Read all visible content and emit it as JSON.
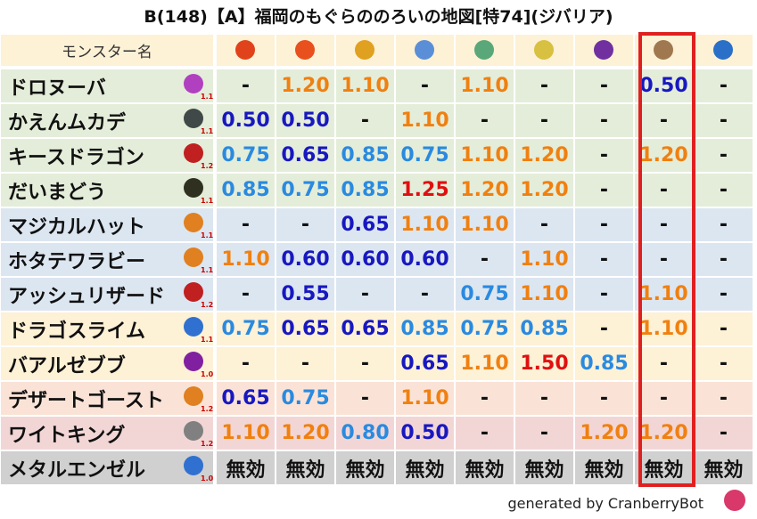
{
  "title": "B(148)【A】福岡のもぐらののろいの地図[特74](ジバリア)",
  "table": {
    "header": "モンスター名",
    "rows": [
      [
        "ドロヌーバ",
        "1.1",
        "-",
        "1.20",
        "1.10",
        "-",
        "1.10",
        "-",
        "-",
        "0.50",
        "-"
      ],
      [
        "かえんムカデ",
        "1.1",
        "0.50",
        "0.50",
        "-",
        "1.10",
        "-",
        "-",
        "-",
        "-",
        "-"
      ],
      [
        "キースドラゴン",
        "1.2",
        "0.75",
        "0.65",
        "0.85",
        "0.75",
        "1.10",
        "1.20",
        "-",
        "1.20",
        "-"
      ],
      [
        "だいまどう",
        "1.1",
        "0.85",
        "0.75",
        "0.85",
        "1.25",
        "1.20",
        "1.20",
        "-",
        "-",
        "-"
      ],
      [
        "マジカルハット",
        "1.1",
        "-",
        "-",
        "0.65",
        "1.10",
        "1.10",
        "-",
        "-",
        "-",
        "-"
      ],
      [
        "ホタテワラビー",
        "1.1",
        "1.10",
        "0.60",
        "0.60",
        "0.60",
        "-",
        "1.10",
        "-",
        "-",
        "-"
      ],
      [
        "アッシュリザード",
        "1.2",
        "-",
        "0.55",
        "-",
        "-",
        "0.75",
        "1.10",
        "-",
        "1.10",
        "-"
      ],
      [
        "ドラゴスライム",
        "1.1",
        "0.75",
        "0.65",
        "0.65",
        "0.85",
        "0.75",
        "0.85",
        "-",
        "1.10",
        "-"
      ],
      [
        "バアルゼブブ",
        "1.0",
        "-",
        "-",
        "-",
        "0.65",
        "1.10",
        "1.50",
        "0.85",
        "-",
        "-"
      ],
      [
        "デザートゴースト",
        "1.2",
        "0.65",
        "0.75",
        "-",
        "1.10",
        "-",
        "-",
        "-",
        "-",
        "-"
      ],
      [
        "ワイトキング",
        "1.2",
        "1.10",
        "1.20",
        "0.80",
        "0.50",
        "-",
        "-",
        "1.20",
        "1.20",
        "-"
      ],
      [
        "メタルエンゼル",
        "1.0",
        "無効",
        "無効",
        "無効",
        "無効",
        "無効",
        "無効",
        "無効",
        "無効",
        "無効"
      ]
    ]
  },
  "footer": "generated by CranberryBot"
}
